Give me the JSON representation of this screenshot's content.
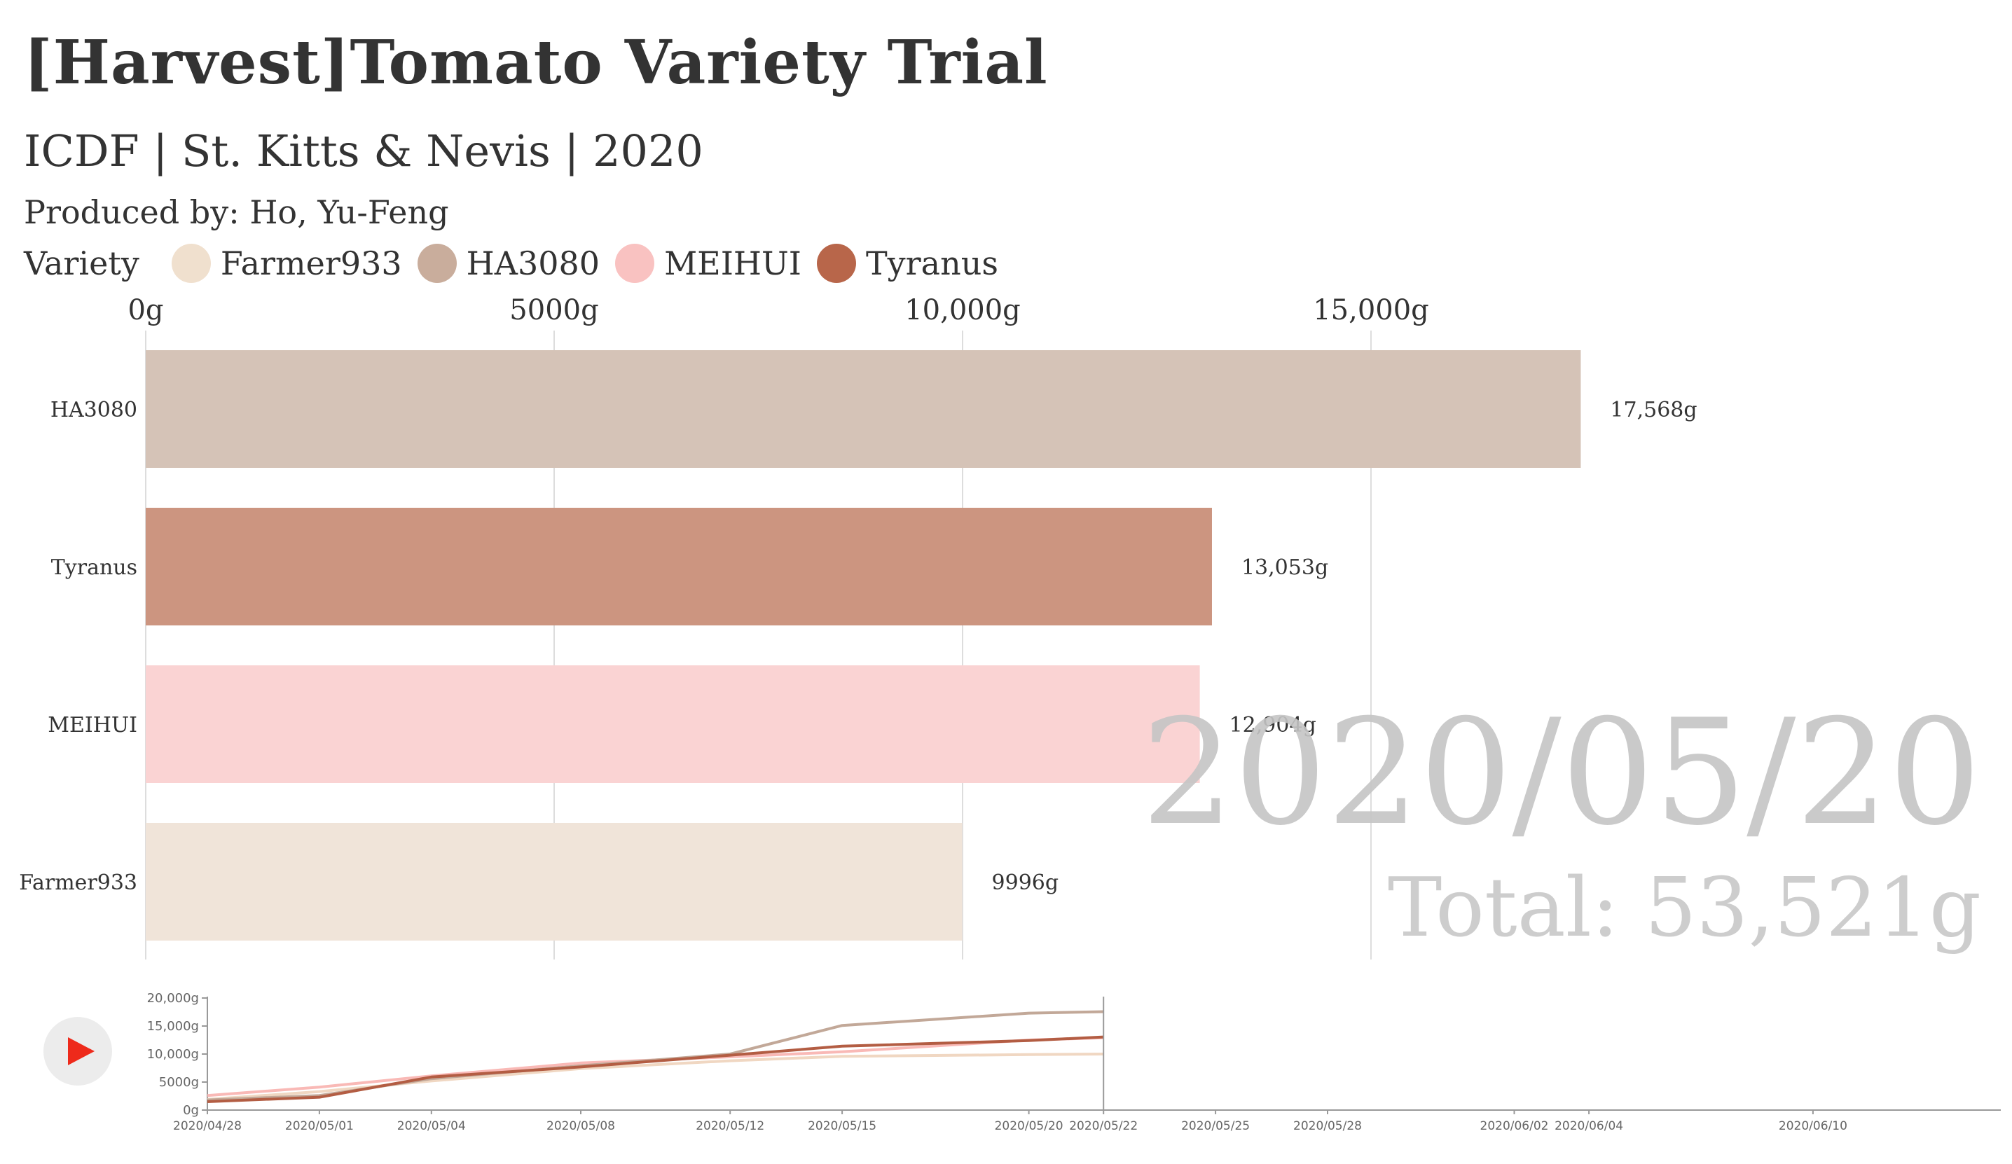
{
  "title": "[Harvest]Tomato Variety Trial",
  "subtitle": "ICDF | St. Kitts & Nevis | 2020",
  "producer": "Produced by: Ho, Yu-Feng",
  "legend": {
    "title": "Variety",
    "items": [
      {
        "label": "Farmer933",
        "color": "#f0e0ce"
      },
      {
        "label": "HA3080",
        "color": "#c9ad9c"
      },
      {
        "label": "MEIHUI",
        "color": "#f9c2c1"
      },
      {
        "label": "Tyranus",
        "color": "#b8664a"
      }
    ]
  },
  "current_date": "2020/05/20",
  "total_label": "Total: 53,521g",
  "play_button": {
    "icon": "play-icon",
    "icon_color": "#ee2a1b"
  },
  "chart_data": [
    {
      "type": "bar",
      "orientation": "horizontal",
      "categories": [
        "HA3080",
        "Tyranus",
        "MEIHUI",
        "Farmer933"
      ],
      "values": [
        17568,
        13053,
        12904,
        9996
      ],
      "value_labels": [
        "17,568g",
        "13,053g",
        "12,904g",
        "9996g"
      ],
      "colors": [
        "#d5c3b7",
        "#cc9580",
        "#fad3d3",
        "#f0e4d9"
      ],
      "x_ticks": [
        0,
        5000,
        10000,
        15000
      ],
      "x_tick_labels": [
        "0g",
        "5000g",
        "10,000g",
        "15,000g"
      ],
      "xlim": [
        0,
        20000
      ],
      "axis_position": "top",
      "grid": true
    },
    {
      "type": "line",
      "y_ticks": [
        0,
        5000,
        10000,
        15000,
        20000
      ],
      "y_tick_labels": [
        "0g",
        "5000g",
        "10,000g",
        "15,000g",
        "20,000g"
      ],
      "ylim": [
        0,
        20000
      ],
      "x_ticks": [
        "2020/04/28",
        "2020/05/01",
        "2020/05/04",
        "2020/05/08",
        "2020/05/12",
        "2020/05/15",
        "2020/05/20",
        "2020/05/22",
        "2020/05/25",
        "2020/05/28",
        "2020/06/02",
        "2020/06/04",
        "2020/06/10"
      ],
      "x": [
        "2020/04/28",
        "2020/05/01",
        "2020/05/04",
        "2020/05/08",
        "2020/05/12",
        "2020/05/15",
        "2020/05/20",
        "2020/05/22"
      ],
      "cursor_date": "2020/05/22",
      "series": [
        {
          "name": "Farmer933",
          "color": "#f0d7c2",
          "values": [
            1900,
            3300,
            5200,
            7400,
            8800,
            9600,
            9900,
            9996
          ]
        },
        {
          "name": "MEIHUI",
          "color": "#f9b9b6",
          "values": [
            2600,
            4100,
            6100,
            8400,
            9500,
            10400,
            12500,
            12904
          ]
        },
        {
          "name": "HA3080",
          "color": "#c2a898",
          "values": [
            1800,
            2600,
            5600,
            7900,
            10000,
            15100,
            17300,
            17568
          ]
        },
        {
          "name": "Tyranus",
          "color": "#b35d43",
          "values": [
            1500,
            2300,
            5900,
            7700,
            9800,
            11400,
            12400,
            13053
          ]
        }
      ]
    }
  ]
}
